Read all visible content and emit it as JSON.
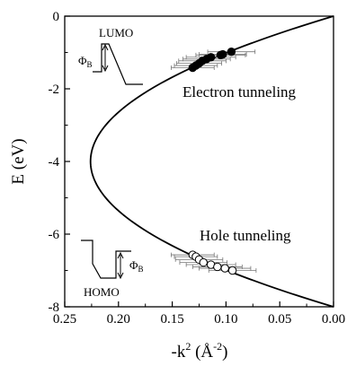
{
  "chart_data": {
    "type": "scatter",
    "title": "",
    "xlabel": "-k",
    "xlabel_sup": "2",
    "xlabel_unit": " (Å",
    "xlabel_unit_sup": "-2",
    "xlabel_close": ")",
    "ylabel": "E (eV)",
    "xlim": [
      0.25,
      0.0
    ],
    "ylim": [
      -8,
      0
    ],
    "x_ticks": [
      0.25,
      0.2,
      0.15,
      0.1,
      0.05,
      0.0
    ],
    "x_tick_labels": [
      "0.25",
      "0.20",
      "0.15",
      "0.10",
      "0.05",
      "0.00"
    ],
    "y_ticks": [
      0,
      -2,
      -4,
      -6,
      -8
    ],
    "y_tick_labels": [
      "0",
      "-2",
      "-4",
      "-6",
      "-8"
    ],
    "curve": {
      "description_type": "parabola",
      "vertex": {
        "x": 0.226,
        "y": -4.0
      },
      "points": [
        {
          "x": 0.0,
          "y": 0.0
        },
        {
          "x": 0.0424,
          "y": -0.5
        },
        {
          "x": 0.0791,
          "y": -1.0
        },
        {
          "x": 0.1102,
          "y": -1.5
        },
        {
          "x": 0.1356,
          "y": -2.0
        },
        {
          "x": 0.178,
          "y": -2.75
        },
        {
          "x": 0.2119,
          "y": -3.5
        },
        {
          "x": 0.226,
          "y": -4.0
        },
        {
          "x": 0.2119,
          "y": -4.5
        },
        {
          "x": 0.178,
          "y": -5.25
        },
        {
          "x": 0.1356,
          "y": -6.0
        },
        {
          "x": 0.1102,
          "y": -6.5
        },
        {
          "x": 0.0791,
          "y": -7.0
        },
        {
          "x": 0.0424,
          "y": -7.5
        },
        {
          "x": 0.0,
          "y": -8.0
        }
      ]
    },
    "series": [
      {
        "name": "Electron tunneling",
        "marker": "filled-circle",
        "points": [
          {
            "x": 0.131,
            "y": -1.42,
            "xerr": 0.02
          },
          {
            "x": 0.128,
            "y": -1.36,
            "xerr": 0.02
          },
          {
            "x": 0.125,
            "y": -1.3,
            "xerr": 0.021
          },
          {
            "x": 0.122,
            "y": -1.23,
            "xerr": 0.022
          },
          {
            "x": 0.118,
            "y": -1.18,
            "xerr": 0.022
          },
          {
            "x": 0.114,
            "y": -1.13,
            "xerr": 0.023
          },
          {
            "x": 0.105,
            "y": -1.07,
            "xerr": 0.023
          },
          {
            "x": 0.103,
            "y": -1.05,
            "xerr": 0.022
          },
          {
            "x": 0.095,
            "y": -0.98,
            "xerr": 0.022
          }
        ]
      },
      {
        "name": "Hole tunneling",
        "marker": "open-circle",
        "points": [
          {
            "x": 0.131,
            "y": -6.57,
            "xerr": 0.02
          },
          {
            "x": 0.128,
            "y": -6.62,
            "xerr": 0.02
          },
          {
            "x": 0.125,
            "y": -6.7,
            "xerr": 0.022
          },
          {
            "x": 0.121,
            "y": -6.78,
            "xerr": 0.022
          },
          {
            "x": 0.114,
            "y": -6.84,
            "xerr": 0.023
          },
          {
            "x": 0.108,
            "y": -6.9,
            "xerr": 0.023
          },
          {
            "x": 0.101,
            "y": -6.94,
            "xerr": 0.024
          },
          {
            "x": 0.094,
            "y": -7.0,
            "xerr": 0.022
          }
        ]
      }
    ],
    "annotations": {
      "electron": "Electron tunneling",
      "hole": "Hole tunneling",
      "lumo": "LUMO",
      "homo": "HOMO",
      "phi": "Φ",
      "phi_sub": "B"
    },
    "grid": false,
    "legend": "none"
  }
}
